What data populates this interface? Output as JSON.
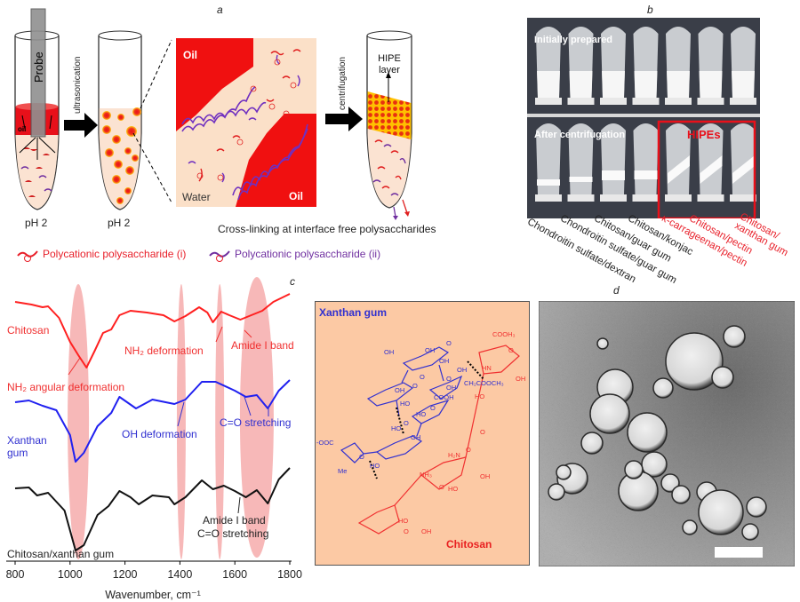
{
  "panel_a": {
    "label": "a",
    "probe": "Probe",
    "oil_small": "oil",
    "ph_left": "pH 2",
    "ph_right": "pH 2",
    "ultrasonication": "ultrasonication",
    "oil_top": "Oil",
    "oil_bottom": "Oil",
    "water": "Water",
    "centrifugation": "centrifugation",
    "hipe_layer_1": "HIPE",
    "hipe_layer_2": "layer",
    "caption": "Cross-linking at interface free polysaccharides",
    "legend": [
      {
        "text": "Polycationic polysaccharide (i)",
        "color": "#e8202a"
      },
      {
        "text": "Polycationic polysaccharide (ii)",
        "color": "#7030a0"
      }
    ]
  },
  "panel_b": {
    "label": "b",
    "initially_prepared": "Initially prepared",
    "after_centrifugation": "After centrifugation",
    "hipes": "HIPEs",
    "samples": [
      {
        "name": "Chondroitin sulfate/dextran",
        "color": "#222"
      },
      {
        "name": "Chondroitin sulfate/guar gum",
        "color": "#222"
      },
      {
        "name": "Chitosan/guar gum",
        "color": "#222"
      },
      {
        "name": "Chitosan/konjac",
        "color": "#222"
      },
      {
        "name": "κ-carrageenan/pectin",
        "color": "#e8202a"
      },
      {
        "name": "Chitosan/pectin",
        "color": "#e8202a"
      },
      {
        "name": "Chitosan/",
        "name2": "xanthan gum",
        "color": "#e8202a"
      }
    ]
  },
  "panel_c": {
    "label": "c"
  },
  "chart_data": {
    "type": "line",
    "xlabel": "Wavenumber, cm⁻¹",
    "ylabel": "",
    "xlim": [
      800,
      1800
    ],
    "xticks": [
      "800",
      "1000",
      "1200",
      "1400",
      "1600",
      "1800"
    ],
    "y_units": "relative transmittance (a.u., stacked)",
    "highlight_bands": [
      1030,
      1405,
      1545,
      1680
    ],
    "series": [
      {
        "name": "Chitosan",
        "color": "#ff2020",
        "x": [
          800,
          860,
          900,
          920,
          960,
          1000,
          1030,
          1060,
          1090,
          1120,
          1150,
          1180,
          1220,
          1280,
          1340,
          1380,
          1420,
          1470,
          1500,
          1520,
          1550,
          1580,
          1620,
          1660,
          1700,
          1740,
          1800
        ],
        "y": [
          80,
          77,
          74,
          75,
          62,
          35,
          20,
          6,
          25,
          45,
          49,
          65,
          70,
          68,
          65,
          58,
          64,
          74,
          68,
          57,
          69,
          65,
          60,
          65,
          70,
          80,
          89
        ]
      },
      {
        "name": "Xanthan gum",
        "color": "#2020f0",
        "x": [
          800,
          850,
          900,
          950,
          1000,
          1020,
          1050,
          1100,
          1150,
          1180,
          1240,
          1300,
          1380,
          1420,
          1480,
          1530,
          1600,
          1640,
          1680,
          1720,
          1760,
          1800
        ],
        "y": [
          77,
          79,
          73,
          68,
          40,
          10,
          20,
          50,
          65,
          83,
          70,
          80,
          75,
          80,
          100,
          100,
          90,
          83,
          85,
          70,
          90,
          102
        ]
      },
      {
        "name": "Chitosan/xanthan gum",
        "color": "#111111",
        "x": [
          800,
          850,
          880,
          920,
          980,
          1020,
          1050,
          1100,
          1140,
          1180,
          1220,
          1250,
          1300,
          1360,
          1380,
          1420,
          1480,
          1520,
          1560,
          1600,
          1640,
          1680,
          1720,
          1760,
          1800
        ],
        "y": [
          80,
          81,
          72,
          75,
          55,
          10,
          16,
          50,
          60,
          77,
          70,
          62,
          72,
          70,
          62,
          70,
          89,
          79,
          83,
          77,
          70,
          78,
          63,
          90,
          103
        ]
      }
    ],
    "annotations": {
      "chitosan": "Chitosan",
      "xanthan_1": "Xanthan",
      "xanthan_2": "gum",
      "mix": "Chitosan/xanthan gum",
      "nh2_angular": "NH₂ angular deformation",
      "nh2_def": "NH₂ deformation",
      "amide_red": "Amide I band",
      "oh_def": "OH deformation",
      "co_blue": "C=O stretching",
      "amide_black": "Amide I band",
      "co_black": "C=O stretching"
    }
  },
  "structure": {
    "xanthan": "Xanthan gum",
    "chitosan": "Chitosan",
    "groups_blue": [
      "OH",
      "O",
      "OH",
      "OH",
      "OH",
      "O",
      "O",
      "OH",
      "HO",
      "OH",
      "O",
      "HO",
      "COOH",
      "O",
      "HO",
      "O",
      "OH",
      "HO",
      "-OOC",
      "Me",
      "O",
      "CH₂COOCH₃"
    ],
    "groups_red": [
      "COOH₃",
      "HN",
      "O",
      "HO",
      "OH",
      "O",
      "H₂N",
      "O",
      "HO",
      "OH",
      "NH₃",
      "O",
      "HO",
      "O",
      "OH"
    ]
  },
  "panel_d": {
    "label": "d"
  }
}
